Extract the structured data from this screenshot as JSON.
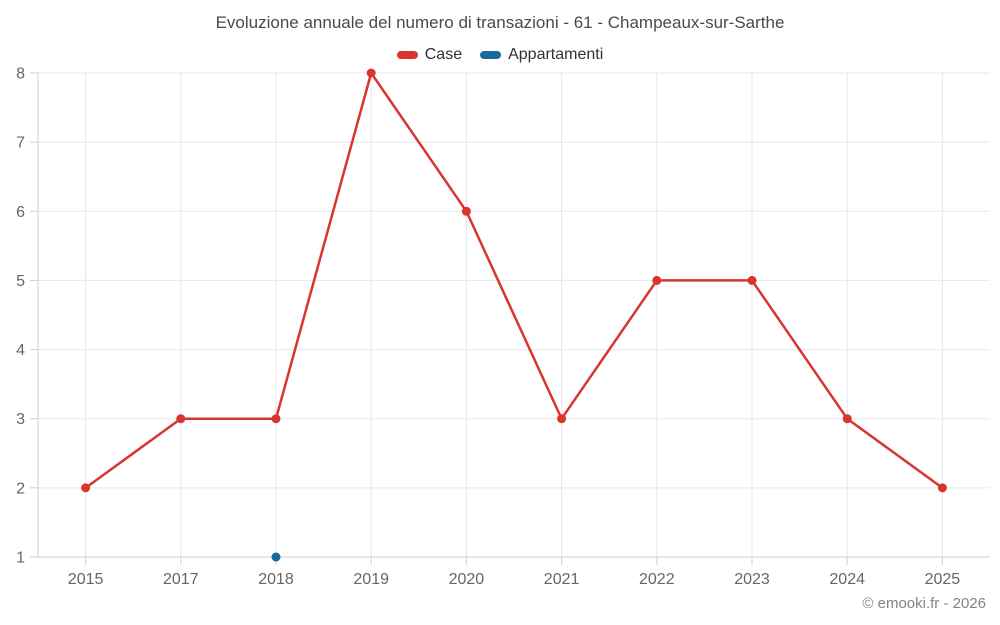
{
  "credits": "© emooki.fr - 2026",
  "legend": {
    "items": [
      {
        "label": "Case",
        "color": "#d8352f"
      },
      {
        "label": "Appartamenti",
        "color": "#17699e"
      }
    ]
  },
  "chart_data": {
    "type": "line",
    "title": "Evoluzione annuale del numero di transazioni - 61 - Champeaux-sur-Sarthe",
    "categories": [
      "2015",
      "2017",
      "2018",
      "2019",
      "2020",
      "2021",
      "2022",
      "2023",
      "2024",
      "2025"
    ],
    "series": [
      {
        "name": "Case",
        "color": "#d8352f",
        "values": [
          2,
          3,
          3,
          8,
          6,
          3,
          5,
          5,
          3,
          2
        ]
      },
      {
        "name": "Appartamenti",
        "color": "#17699e",
        "values": [
          null,
          null,
          1,
          null,
          null,
          null,
          null,
          null,
          null,
          null
        ]
      }
    ],
    "xlabel": "",
    "ylabel": "",
    "ylim": [
      1,
      8
    ],
    "yticks": [
      1,
      2,
      3,
      4,
      5,
      6,
      7,
      8
    ],
    "grid": true,
    "legend_position": "top",
    "grid_color": "#e7e7e7",
    "axis_color": "#cfcfcf",
    "tick_label_color": "#666666"
  }
}
